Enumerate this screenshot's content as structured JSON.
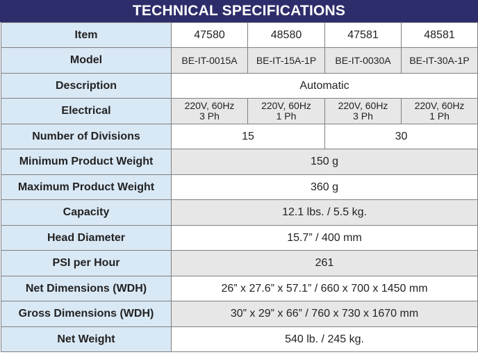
{
  "title": "TECHNICAL SPECIFICATIONS",
  "rows": {
    "item": {
      "label": "Item",
      "values": [
        "47580",
        "48580",
        "47581",
        "48581"
      ]
    },
    "model": {
      "label": "Model",
      "values": [
        "BE-IT-0015A",
        "BE-IT-15A-1P",
        "BE-IT-0030A",
        "BE-IT-30A-1P"
      ]
    },
    "description": {
      "label": "Description",
      "value": "Automatic"
    },
    "electrical": {
      "label": "Electrical",
      "values": [
        {
          "line1": "220V, 60Hz",
          "line2": "3 Ph"
        },
        {
          "line1": "220V, 60Hz",
          "line2": "1 Ph"
        },
        {
          "line1": "220V, 60Hz",
          "line2": "3 Ph"
        },
        {
          "line1": "220V, 60Hz",
          "line2": "1 Ph"
        }
      ]
    },
    "divisions": {
      "label": "Number of Divisions",
      "values": [
        "15",
        "30"
      ]
    },
    "min_weight": {
      "label": "Minimum Product Weight",
      "value": "150 g"
    },
    "max_weight": {
      "label": "Maximum Product Weight",
      "value": "360 g"
    },
    "capacity": {
      "label": "Capacity",
      "value": "12.1 lbs. / 5.5 kg."
    },
    "head_diameter": {
      "label": "Head Diameter",
      "value": "15.7” / 400 mm"
    },
    "psi": {
      "label": "PSI per Hour",
      "value": "261"
    },
    "net_dimensions": {
      "label": "Net Dimensions (WDH)",
      "value": "26” x 27.6” x 57.1” / 660 x 700 x 1450 mm"
    },
    "gross_dimensions": {
      "label": "Gross Dimensions (WDH)",
      "value": "30” x 29” x 66” / 760 x 730 x 1670 mm"
    },
    "net_weight": {
      "label": "Net Weight",
      "value": "540 lb. / 245 kg."
    }
  }
}
